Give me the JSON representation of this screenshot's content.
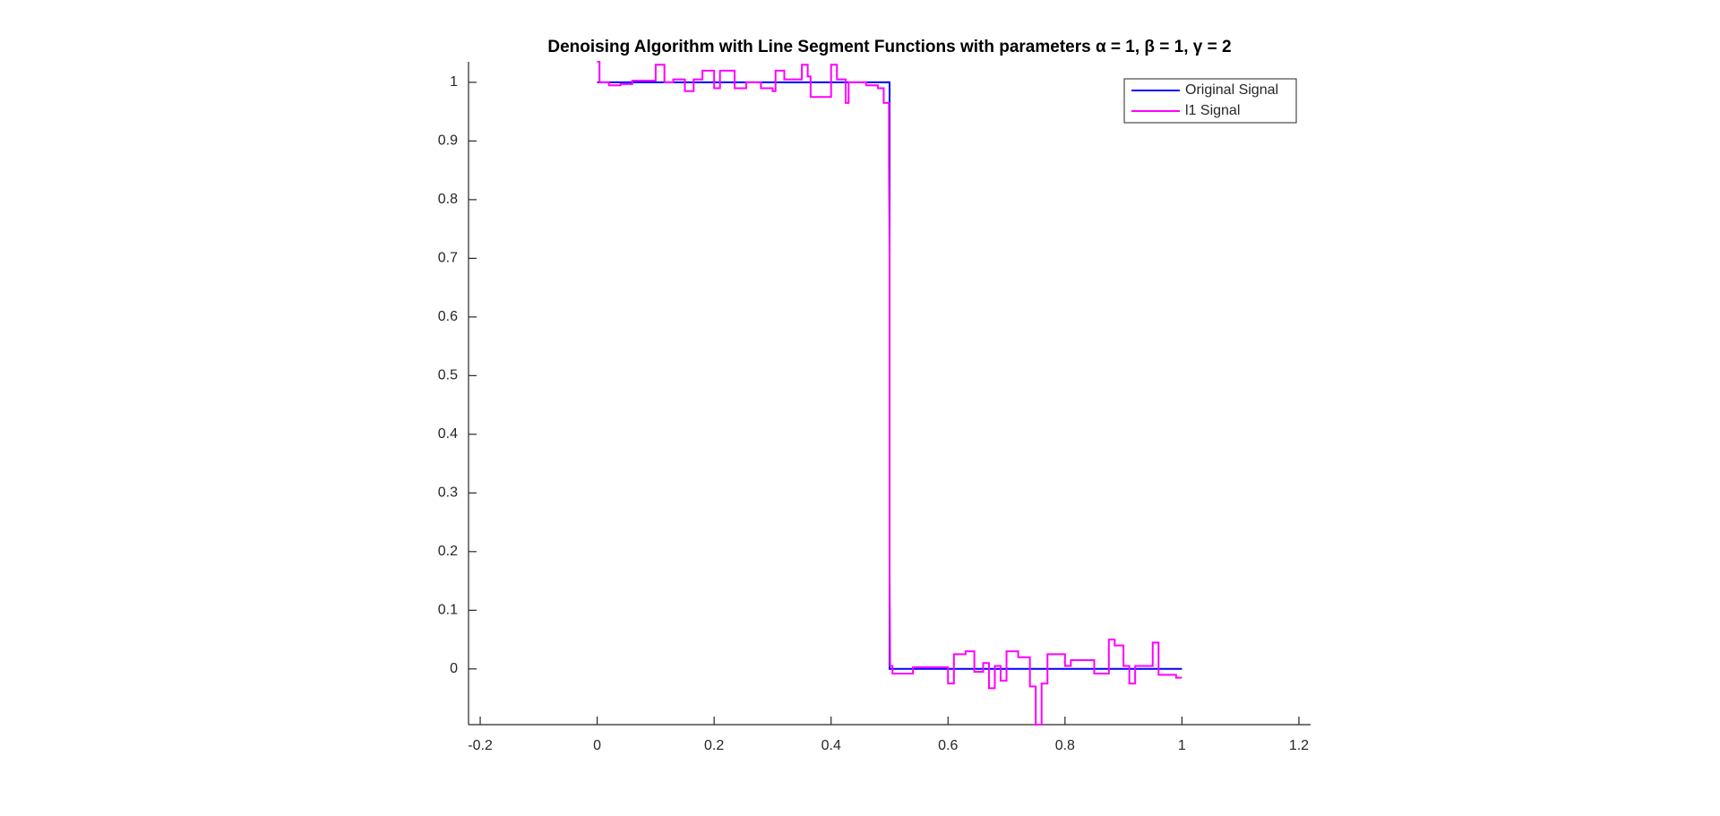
{
  "chart_data": {
    "type": "line",
    "title": "Denoising Algorithm with Line Segment Functions with parameters α = 1, β = 1, γ = 2",
    "xlim": [
      -0.22,
      1.22
    ],
    "xticks": [
      -0.2,
      0,
      0.2,
      0.4,
      0.6,
      0.8,
      1,
      1.2
    ],
    "ylim": [
      -0.095,
      1.035
    ],
    "yticks": [
      0,
      0.1,
      0.2,
      0.3,
      0.4,
      0.5,
      0.6,
      0.7,
      0.8,
      0.9,
      1
    ],
    "grid": false,
    "legend": "upper right",
    "series": [
      {
        "name": "Original Signal",
        "color": "#0000ff",
        "x": [
          0,
          0.5,
          0.5,
          1
        ],
        "values": [
          1,
          1,
          0,
          0
        ]
      },
      {
        "name": "l1 Signal",
        "color": "#ff00ff",
        "x": [
          0,
          0.004,
          0.004,
          0.02,
          0.02,
          0.04,
          0.04,
          0.06,
          0.06,
          0.1,
          0.1,
          0.115,
          0.115,
          0.13,
          0.13,
          0.15,
          0.15,
          0.165,
          0.165,
          0.18,
          0.18,
          0.2,
          0.2,
          0.21,
          0.21,
          0.235,
          0.235,
          0.255,
          0.255,
          0.28,
          0.28,
          0.3,
          0.3,
          0.305,
          0.305,
          0.32,
          0.32,
          0.35,
          0.35,
          0.36,
          0.36,
          0.365,
          0.365,
          0.4,
          0.4,
          0.41,
          0.41,
          0.425,
          0.425,
          0.43,
          0.43,
          0.46,
          0.46,
          0.48,
          0.48,
          0.49,
          0.49,
          0.499,
          0.499,
          0.5,
          0.5,
          0.501,
          0.501,
          0.505,
          0.505,
          0.54,
          0.54,
          0.6,
          0.6,
          0.61,
          0.61,
          0.63,
          0.63,
          0.645,
          0.645,
          0.66,
          0.66,
          0.67,
          0.67,
          0.68,
          0.68,
          0.69,
          0.69,
          0.7,
          0.7,
          0.72,
          0.72,
          0.74,
          0.74,
          0.75,
          0.75,
          0.76,
          0.76,
          0.77,
          0.77,
          0.8,
          0.8,
          0.81,
          0.81,
          0.85,
          0.85,
          0.875,
          0.875,
          0.885,
          0.885,
          0.9,
          0.9,
          0.91,
          0.91,
          0.92,
          0.92,
          0.95,
          0.95,
          0.96,
          0.96,
          0.99,
          0.99,
          1
        ],
        "values": [
          1.035,
          1.035,
          1,
          1,
          0.995,
          0.995,
          0.997,
          0.997,
          1.003,
          1.003,
          1.03,
          1.03,
          1,
          1,
          1.005,
          1.005,
          0.985,
          0.985,
          1.005,
          1.005,
          1.02,
          1.02,
          0.99,
          0.99,
          1.02,
          1.02,
          0.99,
          0.99,
          1,
          1,
          0.99,
          0.99,
          0.985,
          0.985,
          1.02,
          1.02,
          1.005,
          1.005,
          1.03,
          1.03,
          1.01,
          1.01,
          0.975,
          0.975,
          1.03,
          1.03,
          1.005,
          1.005,
          0.965,
          0.965,
          1,
          1,
          0.995,
          0.995,
          0.99,
          0.99,
          0.965,
          0.965,
          0.86,
          0.7,
          0.17,
          0.01,
          0.005,
          0.005,
          -0.008,
          -0.008,
          0.003,
          0.003,
          -0.025,
          -0.025,
          0.025,
          0.025,
          0.03,
          0.03,
          -0.005,
          -0.005,
          0.01,
          0.01,
          -0.033,
          -0.033,
          0.005,
          0.005,
          -0.02,
          -0.02,
          0.03,
          0.03,
          0.02,
          0.02,
          -0.03,
          -0.03,
          -0.095,
          -0.095,
          -0.025,
          -0.025,
          0.025,
          0.025,
          0.005,
          0.005,
          0.015,
          0.015,
          -0.008,
          -0.008,
          0.05,
          0.05,
          0.04,
          0.04,
          0.005,
          0.005,
          -0.025,
          -0.025,
          0.005,
          0.005,
          0.045,
          0.045,
          -0.01,
          -0.01,
          -0.015,
          -0.015
        ]
      }
    ]
  }
}
